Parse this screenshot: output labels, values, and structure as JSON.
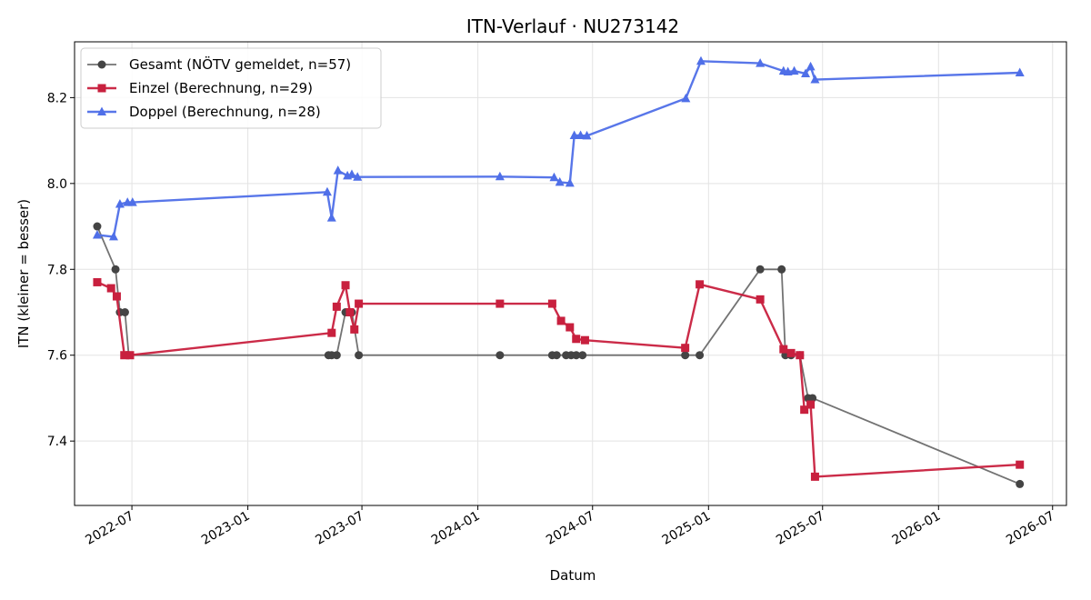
{
  "chart_data": {
    "type": "line",
    "title": "ITN-Verlauf · NU273142",
    "xlabel": "Datum",
    "ylabel": "ITN  (kleiner = besser)",
    "xlim": [
      "2022-04-01",
      "2026-07-23"
    ],
    "ylim": [
      7.25,
      8.33
    ],
    "x_ticks": [
      "2022-07",
      "2023-01",
      "2023-07",
      "2024-01",
      "2024-07",
      "2025-01",
      "2025-07",
      "2026-01",
      "2026-07"
    ],
    "y_ticks": [
      7.4,
      7.6,
      7.8,
      8.0,
      8.2
    ],
    "grid": true,
    "legend_position": "top-left",
    "series": [
      {
        "name": "Gesamt (NÖTV gemeldet, n=57)",
        "color": "#444444",
        "marker": "circle",
        "points": [
          [
            "2022-05-07",
            7.9
          ],
          [
            "2022-06-05",
            7.8
          ],
          [
            "2022-06-12",
            7.7
          ],
          [
            "2022-06-20",
            7.7
          ],
          [
            "2022-06-26",
            7.6
          ],
          [
            "2023-05-09",
            7.6
          ],
          [
            "2023-05-14",
            7.6
          ],
          [
            "2023-05-22",
            7.6
          ],
          [
            "2023-06-05",
            7.7
          ],
          [
            "2023-06-15",
            7.7
          ],
          [
            "2023-06-26",
            7.6
          ],
          [
            "2024-02-05",
            7.6
          ],
          [
            "2024-04-28",
            7.6
          ],
          [
            "2024-05-05",
            7.6
          ],
          [
            "2024-05-20",
            7.6
          ],
          [
            "2024-05-28",
            7.6
          ],
          [
            "2024-06-05",
            7.6
          ],
          [
            "2024-06-15",
            7.6
          ],
          [
            "2024-11-25",
            7.6
          ],
          [
            "2024-12-18",
            7.6
          ],
          [
            "2025-03-24",
            7.8
          ],
          [
            "2025-04-27",
            7.8
          ],
          [
            "2025-05-03",
            7.6
          ],
          [
            "2025-05-12",
            7.6
          ],
          [
            "2025-05-26",
            7.6
          ],
          [
            "2025-06-08",
            7.5
          ],
          [
            "2025-06-15",
            7.5
          ],
          [
            "2026-05-10",
            7.3
          ]
        ]
      },
      {
        "name": "Einzel (Berechnung, n=29)",
        "color": "#c8203e",
        "marker": "square",
        "points": [
          [
            "2022-05-07",
            7.77
          ],
          [
            "2022-05-29",
            7.756
          ],
          [
            "2022-06-07",
            7.737
          ],
          [
            "2022-06-19",
            7.6
          ],
          [
            "2022-06-28",
            7.6
          ],
          [
            "2023-05-14",
            7.652
          ],
          [
            "2023-05-22",
            7.713
          ],
          [
            "2023-06-05",
            7.763
          ],
          [
            "2023-06-12",
            7.7
          ],
          [
            "2023-06-19",
            7.66
          ],
          [
            "2023-06-26",
            7.72
          ],
          [
            "2024-02-05",
            7.72
          ],
          [
            "2024-04-28",
            7.72
          ],
          [
            "2024-05-12",
            7.68
          ],
          [
            "2024-05-26",
            7.665
          ],
          [
            "2024-06-05",
            7.638
          ],
          [
            "2024-06-19",
            7.635
          ],
          [
            "2024-11-25",
            7.617
          ],
          [
            "2024-12-18",
            7.765
          ],
          [
            "2025-03-24",
            7.73
          ],
          [
            "2025-04-30",
            7.614
          ],
          [
            "2025-05-12",
            7.605
          ],
          [
            "2025-05-26",
            7.6
          ],
          [
            "2025-06-02",
            7.473
          ],
          [
            "2025-06-12",
            7.485
          ],
          [
            "2025-06-19",
            7.317
          ],
          [
            "2026-05-10",
            7.345
          ]
        ]
      },
      {
        "name": "Doppel (Berechnung, n=28)",
        "color": "#4f6fe8",
        "marker": "triangle",
        "points": [
          [
            "2022-05-07",
            7.88
          ],
          [
            "2022-06-02",
            7.876
          ],
          [
            "2022-06-12",
            7.952
          ],
          [
            "2022-06-24",
            7.956
          ],
          [
            "2022-07-02",
            7.956
          ],
          [
            "2023-05-07",
            7.98
          ],
          [
            "2023-05-14",
            7.92
          ],
          [
            "2023-05-24",
            8.03
          ],
          [
            "2023-06-08",
            8.018
          ],
          [
            "2023-06-15",
            8.021
          ],
          [
            "2023-06-24",
            8.015
          ],
          [
            "2024-02-05",
            8.016
          ],
          [
            "2024-05-01",
            8.014
          ],
          [
            "2024-05-10",
            8.003
          ],
          [
            "2024-05-26",
            8.001
          ],
          [
            "2024-06-02",
            8.112
          ],
          [
            "2024-06-12",
            8.112
          ],
          [
            "2024-06-22",
            8.111
          ],
          [
            "2024-11-26",
            8.198
          ],
          [
            "2024-12-20",
            8.285
          ],
          [
            "2025-03-24",
            8.28
          ],
          [
            "2025-04-30",
            8.262
          ],
          [
            "2025-05-07",
            8.26
          ],
          [
            "2025-05-17",
            8.262
          ],
          [
            "2025-06-04",
            8.256
          ],
          [
            "2025-06-12",
            8.272
          ],
          [
            "2025-06-19",
            8.242
          ],
          [
            "2026-05-10",
            8.258
          ]
        ]
      }
    ]
  }
}
